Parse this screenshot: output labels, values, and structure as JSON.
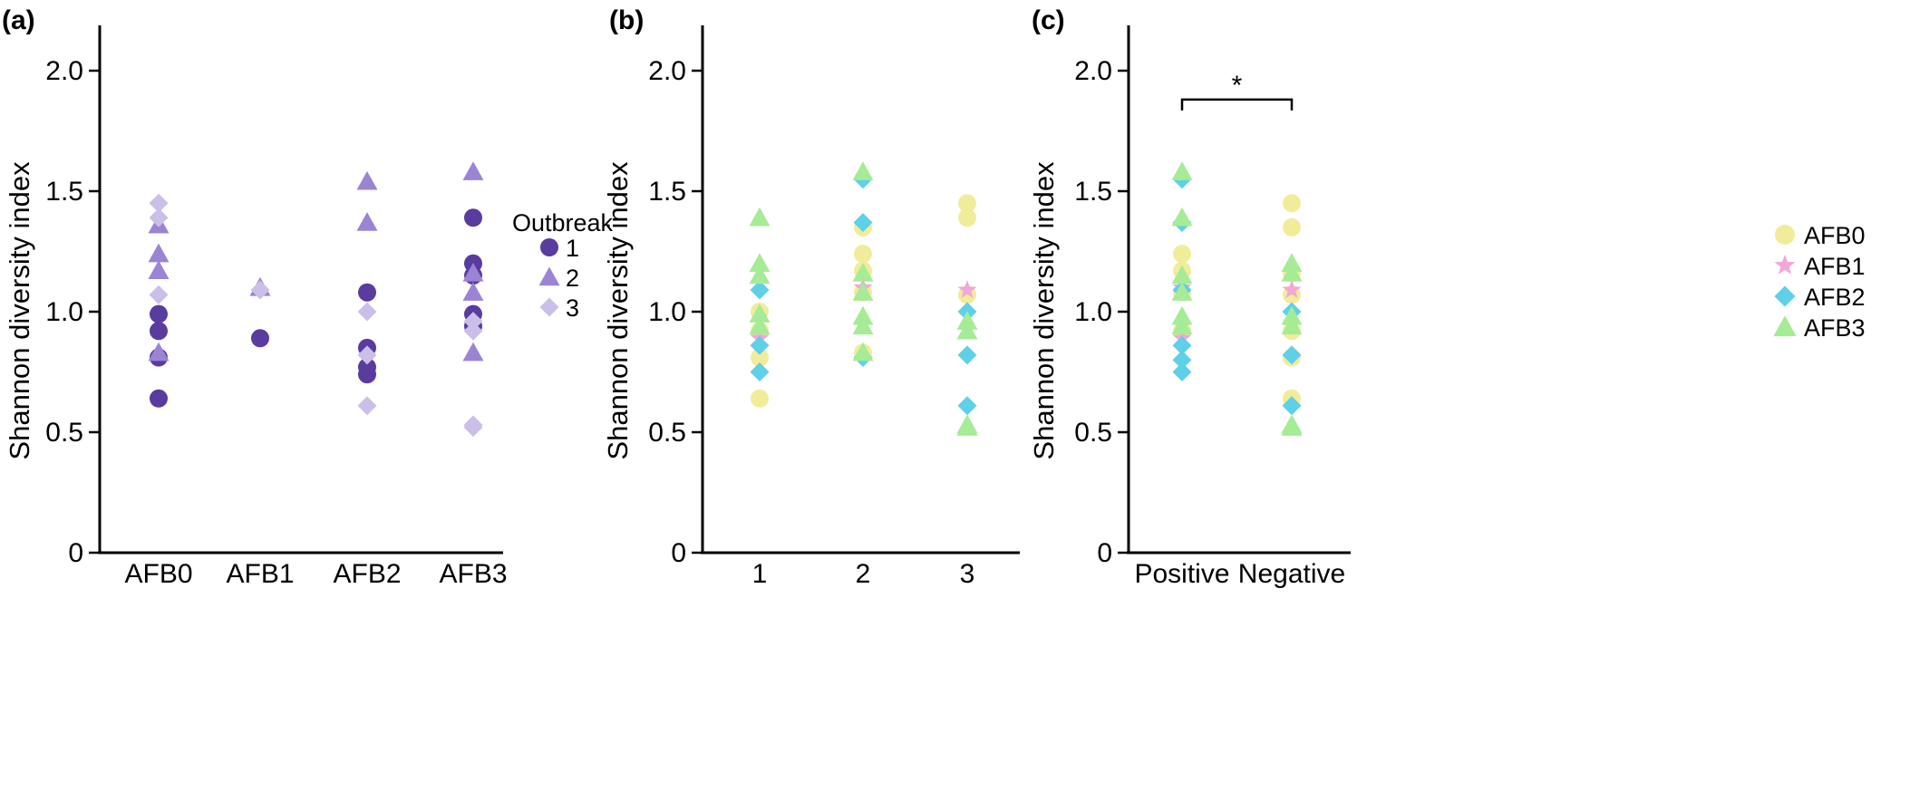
{
  "colors": {
    "outbreak": {
      "1": "#5a3b9e",
      "2": "#9b84d4",
      "3": "#cbbfe9"
    },
    "afb": {
      "AFB0": "#f1ec9a",
      "AFB1": "#f2a8d6",
      "AFB2": "#5ed0e8",
      "AFB3": "#a6eb95"
    }
  },
  "chart_data": [
    {
      "type": "scatter",
      "panel_label": "(a)",
      "ylabel": "Shannon diversity index",
      "ylim": [
        0,
        2.2
      ],
      "yticks": [
        0,
        0.5,
        1.0,
        1.5,
        2.0
      ],
      "ytick_labels": [
        "0",
        "0.5",
        "1.0",
        "1.5",
        "2.0"
      ],
      "categories": [
        "AFB0",
        "AFB1",
        "AFB2",
        "AFB3"
      ],
      "legend": {
        "title": "Outbreak",
        "entries": [
          "1",
          "2",
          "3"
        ],
        "markers": [
          "circle",
          "triangle",
          "diamond"
        ],
        "position": "right"
      },
      "series": [
        {
          "name": "1",
          "marker": "circle",
          "points": [
            [
              "AFB0",
              0.99
            ],
            [
              "AFB0",
              0.92
            ],
            [
              "AFB0",
              0.81
            ],
            [
              "AFB0",
              0.64
            ],
            [
              "AFB1",
              0.89
            ],
            [
              "AFB2",
              1.08
            ],
            [
              "AFB2",
              0.85
            ],
            [
              "AFB2",
              0.77
            ],
            [
              "AFB2",
              0.74
            ],
            [
              "AFB3",
              1.39
            ],
            [
              "AFB3",
              1.2
            ],
            [
              "AFB3",
              1.15
            ],
            [
              "AFB3",
              0.99
            ],
            [
              "AFB3",
              0.94
            ]
          ]
        },
        {
          "name": "2",
          "marker": "triangle",
          "points": [
            [
              "AFB0",
              1.36
            ],
            [
              "AFB0",
              1.24
            ],
            [
              "AFB0",
              1.17
            ],
            [
              "AFB0",
              0.83
            ],
            [
              "AFB1",
              1.1
            ],
            [
              "AFB2",
              1.54
            ],
            [
              "AFB2",
              1.37
            ],
            [
              "AFB3",
              1.58
            ],
            [
              "AFB3",
              1.16
            ],
            [
              "AFB3",
              1.08
            ],
            [
              "AFB3",
              0.83
            ]
          ]
        },
        {
          "name": "3",
          "marker": "diamond",
          "points": [
            [
              "AFB0",
              1.45
            ],
            [
              "AFB0",
              1.39
            ],
            [
              "AFB0",
              1.07
            ],
            [
              "AFB1",
              1.09
            ],
            [
              "AFB2",
              1.0
            ],
            [
              "AFB2",
              0.82
            ],
            [
              "AFB2",
              0.61
            ],
            [
              "AFB3",
              0.96
            ],
            [
              "AFB3",
              0.92
            ],
            [
              "AFB3",
              0.53
            ],
            [
              "AFB3",
              0.52
            ]
          ]
        }
      ]
    },
    {
      "type": "scatter",
      "panel_label": "(b)",
      "ylabel": "Shannon diversity index",
      "ylim": [
        0,
        2.2
      ],
      "yticks": [
        0,
        0.5,
        1.0,
        1.5,
        2.0
      ],
      "ytick_labels": [
        "0",
        "0.5",
        "1.0",
        "1.5",
        "2.0"
      ],
      "categories": [
        "1",
        "2",
        "3"
      ],
      "series": [
        {
          "name": "AFB0",
          "marker": "circle",
          "points": [
            [
              "1",
              1.0
            ],
            [
              "1",
              0.92
            ],
            [
              "1",
              0.81
            ],
            [
              "1",
              0.64
            ],
            [
              "2",
              1.35
            ],
            [
              "2",
              1.24
            ],
            [
              "2",
              1.17
            ],
            [
              "2",
              1.08
            ],
            [
              "2",
              0.83
            ],
            [
              "3",
              1.45
            ],
            [
              "3",
              1.39
            ],
            [
              "3",
              1.07
            ]
          ]
        },
        {
          "name": "AFB1",
          "marker": "star",
          "points": [
            [
              "1",
              0.89
            ],
            [
              "2",
              1.1
            ],
            [
              "3",
              1.09
            ]
          ]
        },
        {
          "name": "AFB2",
          "marker": "diamond",
          "points": [
            [
              "1",
              1.09
            ],
            [
              "1",
              0.86
            ],
            [
              "1",
              0.75
            ],
            [
              "2",
              1.55
            ],
            [
              "2",
              1.37
            ],
            [
              "2",
              0.81
            ],
            [
              "3",
              1.0
            ],
            [
              "3",
              0.82
            ],
            [
              "3",
              0.61
            ]
          ]
        },
        {
          "name": "AFB3",
          "marker": "triangle",
          "points": [
            [
              "1",
              1.39
            ],
            [
              "1",
              1.2
            ],
            [
              "1",
              1.15
            ],
            [
              "1",
              0.99
            ],
            [
              "1",
              0.94
            ],
            [
              "2",
              1.58
            ],
            [
              "2",
              1.16
            ],
            [
              "2",
              1.08
            ],
            [
              "2",
              0.98
            ],
            [
              "2",
              0.94
            ],
            [
              "2",
              0.83
            ],
            [
              "3",
              0.96
            ],
            [
              "3",
              0.92
            ],
            [
              "3",
              0.53
            ],
            [
              "3",
              0.52
            ]
          ]
        }
      ]
    },
    {
      "type": "scatter",
      "panel_label": "(c)",
      "ylabel": "Shannon diversity index",
      "ylim": [
        0,
        2.2
      ],
      "yticks": [
        0,
        0.5,
        1.0,
        1.5,
        2.0
      ],
      "ytick_labels": [
        "0",
        "0.5",
        "1.0",
        "1.5",
        "2.0"
      ],
      "categories": [
        "Positive",
        "Negative"
      ],
      "significance": {
        "between": [
          "Positive",
          "Negative"
        ],
        "y": 1.88,
        "label": "*"
      },
      "legend": {
        "title": "",
        "entries": [
          "AFB0",
          "AFB1",
          "AFB2",
          "AFB3"
        ],
        "markers": [
          "circle",
          "star",
          "diamond",
          "triangle"
        ],
        "position": "right"
      },
      "series": [
        {
          "name": "AFB0",
          "marker": "circle",
          "points": [
            [
              "Positive",
              1.24
            ],
            [
              "Positive",
              1.17
            ],
            [
              "Positive",
              1.08
            ],
            [
              "Positive",
              0.92
            ],
            [
              "Negative",
              1.45
            ],
            [
              "Negative",
              1.35
            ],
            [
              "Negative",
              1.16
            ],
            [
              "Negative",
              1.07
            ],
            [
              "Negative",
              0.92
            ],
            [
              "Negative",
              0.81
            ],
            [
              "Negative",
              0.64
            ]
          ]
        },
        {
          "name": "AFB1",
          "marker": "star",
          "points": [
            [
              "Positive",
              1.1
            ],
            [
              "Positive",
              0.89
            ],
            [
              "Negative",
              1.09
            ]
          ]
        },
        {
          "name": "AFB2",
          "marker": "diamond",
          "points": [
            [
              "Positive",
              1.55
            ],
            [
              "Positive",
              1.37
            ],
            [
              "Positive",
              1.09
            ],
            [
              "Positive",
              0.86
            ],
            [
              "Positive",
              0.8
            ],
            [
              "Positive",
              0.75
            ],
            [
              "Negative",
              1.0
            ],
            [
              "Negative",
              0.82
            ],
            [
              "Negative",
              0.61
            ]
          ]
        },
        {
          "name": "AFB3",
          "marker": "triangle",
          "points": [
            [
              "Positive",
              1.58
            ],
            [
              "Positive",
              1.39
            ],
            [
              "Positive",
              1.15
            ],
            [
              "Positive",
              1.08
            ],
            [
              "Positive",
              0.98
            ],
            [
              "Positive",
              0.94
            ],
            [
              "Negative",
              1.2
            ],
            [
              "Negative",
              1.16
            ],
            [
              "Negative",
              0.98
            ],
            [
              "Negative",
              0.94
            ],
            [
              "Negative",
              0.53
            ],
            [
              "Negative",
              0.52
            ]
          ]
        }
      ]
    }
  ]
}
